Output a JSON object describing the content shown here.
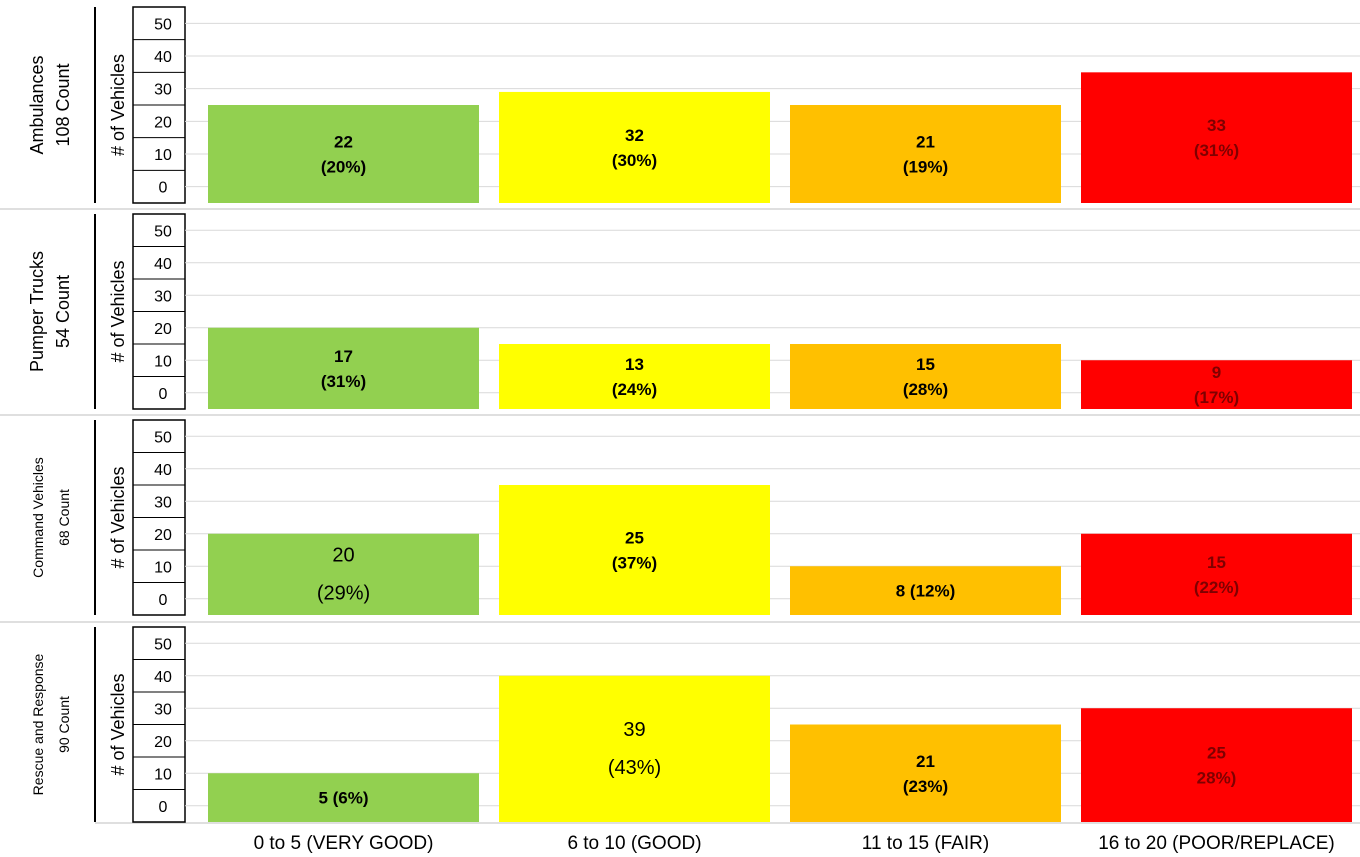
{
  "chart_data": {
    "type": "bar",
    "categories": [
      "0 to 5 (VERY GOOD)",
      "6 to 10 (GOOD)",
      "11 to 15 (FAIR)",
      "16 to 20 (POOR/REPLACE)"
    ],
    "ylabel": "# of Vehicles",
    "ylim": [
      0,
      50
    ],
    "yticks": [
      0,
      10,
      20,
      30,
      40,
      50
    ],
    "grid": true,
    "bar_colors": [
      "#92d050",
      "#ffff00",
      "#ffc000",
      "#ff0000"
    ],
    "panels": [
      {
        "group": "Ambulances",
        "count_label": "108 Count",
        "values": [
          22,
          32,
          21,
          33
        ],
        "bar_heights": [
          25,
          29,
          25,
          35
        ],
        "labels": [
          [
            "22",
            "(20%)"
          ],
          [
            "32",
            "(30%)"
          ],
          [
            "21",
            "(19%)"
          ],
          [
            "33",
            "(31%)"
          ]
        ]
      },
      {
        "group": "Pumper Trucks",
        "count_label": "54 Count",
        "values": [
          17,
          13,
          15,
          9
        ],
        "bar_heights": [
          20,
          15,
          15,
          10
        ],
        "labels": [
          [
            "17",
            "(31%)"
          ],
          [
            "13",
            "(24%)"
          ],
          [
            "15",
            "(28%)"
          ],
          [
            "9",
            "(17%)"
          ]
        ]
      },
      {
        "group": "Command Vehicles",
        "count_label": "68 Count",
        "values": [
          20,
          25,
          8,
          15
        ],
        "bar_heights": [
          20,
          35,
          10,
          20
        ],
        "labels": [
          [
            "20",
            "(29%)"
          ],
          [
            "25",
            "(37%)"
          ],
          [
            "8  (12%)"
          ],
          [
            "15",
            "(22%)"
          ]
        ]
      },
      {
        "group": "Rescue and Response",
        "count_label": "90 Count",
        "values": [
          5,
          39,
          21,
          25
        ],
        "bar_heights": [
          10,
          40,
          25,
          30
        ],
        "labels": [
          [
            "5  (6%)"
          ],
          [
            "39",
            "(43%)"
          ],
          [
            "21",
            "(23%)"
          ],
          [
            "25",
            "28%)"
          ]
        ]
      }
    ]
  }
}
